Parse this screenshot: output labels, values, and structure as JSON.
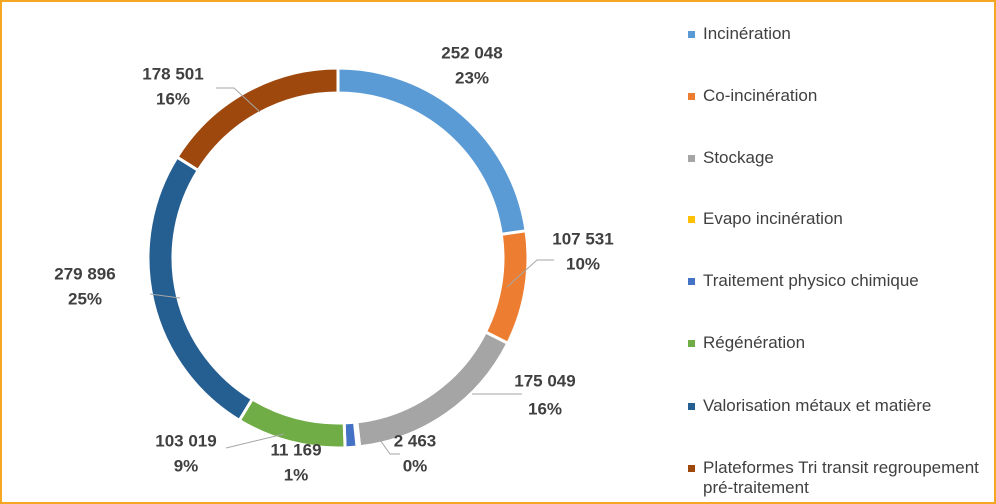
{
  "chart_data": {
    "type": "donut",
    "categories": [
      "Incinération",
      "Co-incinération",
      "Stockage",
      "Evapo incinération",
      "Traitement physico chimique",
      "Régénération",
      "Valorisation métaux et matière",
      "Plateformes Tri transit regroupement pré-traitement"
    ],
    "values": [
      252048,
      107531,
      175049,
      2463,
      11169,
      103019,
      279896,
      178501
    ],
    "value_labels": [
      "252 048",
      "107 531",
      "175 049",
      "2 463",
      "11 169",
      "103 019",
      "279 896",
      "178 501"
    ],
    "percentages": [
      23,
      10,
      16,
      0,
      1,
      9,
      25,
      16
    ],
    "percentage_labels": [
      "23%",
      "10%",
      "16%",
      "0%",
      "1%",
      "9%",
      "25%",
      "16%"
    ],
    "colors": [
      "#5b9bd5",
      "#ed7d31",
      "#a5a5a5",
      "#ffc000",
      "#4472c4",
      "#70ad47",
      "#255e91",
      "#9e480e"
    ],
    "legend": "right"
  }
}
